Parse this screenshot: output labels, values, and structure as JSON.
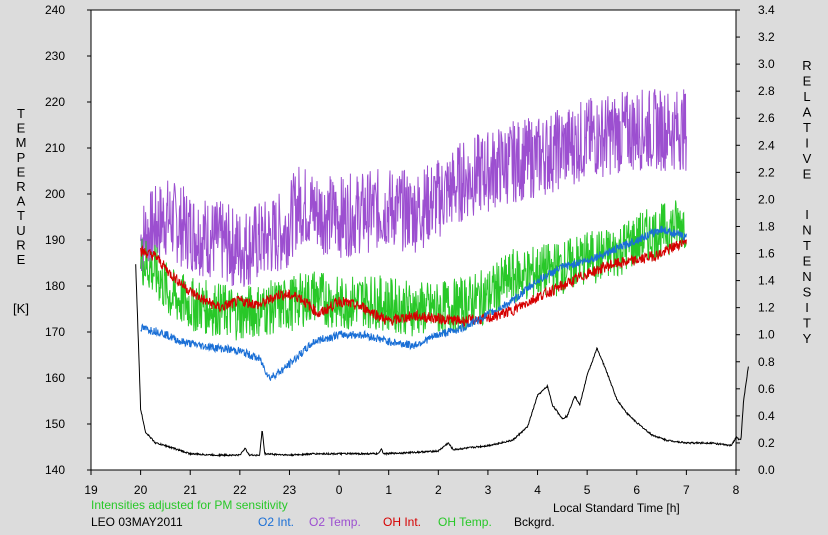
{
  "chart_data": {
    "type": "line",
    "left_axis": {
      "label_letters": [
        "T",
        "E",
        "M",
        "P",
        "E",
        "R",
        "A",
        "T",
        "U",
        "R",
        "E"
      ],
      "unit": "[K]",
      "range": [
        140,
        240
      ],
      "ticks": [
        "140",
        "150",
        "160",
        "170",
        "180",
        "190",
        "200",
        "210",
        "220",
        "230",
        "240"
      ]
    },
    "right_axis": {
      "label_letters_1": [
        "R",
        "E",
        "L",
        "A",
        "T",
        "I",
        "V",
        "E"
      ],
      "label_letters_2": [
        "I",
        "N",
        "T",
        "E",
        "N",
        "S",
        "I",
        "T",
        "Y"
      ],
      "range": [
        0.0,
        3.4
      ],
      "ticks": [
        "0.0",
        "0.2",
        "0.4",
        "0.6",
        "0.8",
        "1.0",
        "1.2",
        "1.4",
        "1.6",
        "1.8",
        "2.0",
        "2.2",
        "2.4",
        "2.6",
        "2.8",
        "3.0",
        "3.2",
        "3.4"
      ]
    },
    "x_axis": {
      "label": "Local Standard Time [h]",
      "range": [
        19,
        32
      ],
      "ticks": [
        "19",
        "20",
        "21",
        "22",
        "23",
        "0",
        "1",
        "2",
        "3",
        "4",
        "5",
        "6",
        "7",
        "8"
      ]
    },
    "note": "Intensities adjusted for PM sensitivity",
    "station": "LEO 03MAY2011",
    "legend": [
      {
        "label": "O2 Int.",
        "color": "#1a6fd6"
      },
      {
        "label": "O2 Temp.",
        "color": "#9c4fd0"
      },
      {
        "label": "OH Int.",
        "color": "#d60000"
      },
      {
        "label": "OH Temp.",
        "color": "#28c828"
      },
      {
        "label": "Bckgrd.",
        "color": "#000000"
      }
    ],
    "series": [
      {
        "key": "o2temp",
        "axis": "left",
        "color": "#9c4fd0",
        "noise": 9,
        "points": [
          [
            20.0,
            190
          ],
          [
            20.5,
            195
          ],
          [
            21.0,
            192
          ],
          [
            21.5,
            190
          ],
          [
            22.0,
            188
          ],
          [
            22.5,
            190
          ],
          [
            22.9,
            192
          ],
          [
            23.2,
            198
          ],
          [
            23.6,
            196
          ],
          [
            24.0,
            195
          ],
          [
            24.5,
            196
          ],
          [
            25.0,
            197
          ],
          [
            25.5,
            196
          ],
          [
            26.0,
            199
          ],
          [
            26.5,
            203
          ],
          [
            27.0,
            205
          ],
          [
            27.5,
            207
          ],
          [
            28.0,
            208
          ],
          [
            28.5,
            210
          ],
          [
            29.0,
            212
          ],
          [
            29.5,
            213
          ],
          [
            30.0,
            214
          ],
          [
            30.5,
            214
          ],
          [
            31.0,
            214
          ]
        ]
      },
      {
        "key": "ohtemp",
        "axis": "left",
        "color": "#28c828",
        "noise": 6,
        "points": [
          [
            20.0,
            186
          ],
          [
            20.3,
            183
          ],
          [
            20.6,
            178
          ],
          [
            21.0,
            176
          ],
          [
            21.5,
            175
          ],
          [
            22.0,
            174
          ],
          [
            22.5,
            175
          ],
          [
            23.0,
            176
          ],
          [
            23.5,
            178
          ],
          [
            24.0,
            176
          ],
          [
            24.5,
            177
          ],
          [
            25.0,
            176
          ],
          [
            25.5,
            175
          ],
          [
            26.0,
            175
          ],
          [
            26.5,
            176
          ],
          [
            27.0,
            178
          ],
          [
            27.5,
            182
          ],
          [
            28.0,
            183
          ],
          [
            28.5,
            184
          ],
          [
            29.0,
            186
          ],
          [
            29.5,
            187
          ],
          [
            30.0,
            190
          ],
          [
            30.5,
            192
          ],
          [
            31.0,
            194
          ]
        ]
      },
      {
        "key": "ohint",
        "axis": "right",
        "color": "#d60000",
        "noise": 0.04,
        "points": [
          [
            20.0,
            1.62
          ],
          [
            20.3,
            1.58
          ],
          [
            20.6,
            1.45
          ],
          [
            21.0,
            1.32
          ],
          [
            21.3,
            1.25
          ],
          [
            21.6,
            1.2
          ],
          [
            22.0,
            1.25
          ],
          [
            22.4,
            1.22
          ],
          [
            22.8,
            1.3
          ],
          [
            23.2,
            1.28
          ],
          [
            23.6,
            1.15
          ],
          [
            24.0,
            1.25
          ],
          [
            24.5,
            1.2
          ],
          [
            25.0,
            1.1
          ],
          [
            25.5,
            1.14
          ],
          [
            26.0,
            1.12
          ],
          [
            26.5,
            1.1
          ],
          [
            27.0,
            1.12
          ],
          [
            27.5,
            1.18
          ],
          [
            28.0,
            1.28
          ],
          [
            28.5,
            1.36
          ],
          [
            29.0,
            1.45
          ],
          [
            29.5,
            1.52
          ],
          [
            30.0,
            1.55
          ],
          [
            30.5,
            1.6
          ],
          [
            31.0,
            1.7
          ]
        ]
      },
      {
        "key": "o2int",
        "axis": "right",
        "color": "#1a6fd6",
        "noise": 0.03,
        "points": [
          [
            20.0,
            1.05
          ],
          [
            20.4,
            1.02
          ],
          [
            20.8,
            0.95
          ],
          [
            21.2,
            0.92
          ],
          [
            21.6,
            0.9
          ],
          [
            22.0,
            0.88
          ],
          [
            22.4,
            0.82
          ],
          [
            22.6,
            0.68
          ],
          [
            22.9,
            0.75
          ],
          [
            23.2,
            0.85
          ],
          [
            23.5,
            0.95
          ],
          [
            24.0,
            1.0
          ],
          [
            24.5,
            1.0
          ],
          [
            25.0,
            0.95
          ],
          [
            25.5,
            0.92
          ],
          [
            26.0,
            1.0
          ],
          [
            26.5,
            1.05
          ],
          [
            27.0,
            1.15
          ],
          [
            27.5,
            1.25
          ],
          [
            28.0,
            1.4
          ],
          [
            28.5,
            1.5
          ],
          [
            29.0,
            1.55
          ],
          [
            29.5,
            1.62
          ],
          [
            30.0,
            1.7
          ],
          [
            30.5,
            1.78
          ],
          [
            31.0,
            1.72
          ]
        ]
      },
      {
        "key": "bckgrd",
        "axis": "right",
        "color": "#000000",
        "noise": 0.006,
        "points": [
          [
            19.9,
            1.52
          ],
          [
            19.95,
            1.0
          ],
          [
            20.0,
            0.45
          ],
          [
            20.1,
            0.28
          ],
          [
            20.3,
            0.2
          ],
          [
            20.5,
            0.18
          ],
          [
            21.0,
            0.12
          ],
          [
            21.5,
            0.11
          ],
          [
            22.0,
            0.11
          ],
          [
            22.1,
            0.16
          ],
          [
            22.2,
            0.11
          ],
          [
            22.4,
            0.11
          ],
          [
            22.45,
            0.3
          ],
          [
            22.5,
            0.12
          ],
          [
            23.0,
            0.11
          ],
          [
            23.5,
            0.12
          ],
          [
            24.0,
            0.12
          ],
          [
            24.8,
            0.12
          ],
          [
            24.85,
            0.16
          ],
          [
            24.9,
            0.12
          ],
          [
            25.5,
            0.13
          ],
          [
            26.0,
            0.14
          ],
          [
            26.2,
            0.2
          ],
          [
            26.3,
            0.15
          ],
          [
            27.0,
            0.18
          ],
          [
            27.5,
            0.22
          ],
          [
            27.8,
            0.32
          ],
          [
            28.0,
            0.55
          ],
          [
            28.2,
            0.62
          ],
          [
            28.3,
            0.48
          ],
          [
            28.5,
            0.38
          ],
          [
            28.6,
            0.4
          ],
          [
            28.75,
            0.55
          ],
          [
            28.85,
            0.48
          ],
          [
            29.0,
            0.7
          ],
          [
            29.2,
            0.9
          ],
          [
            29.4,
            0.72
          ],
          [
            29.6,
            0.52
          ],
          [
            29.8,
            0.42
          ],
          [
            30.0,
            0.35
          ],
          [
            30.3,
            0.26
          ],
          [
            30.6,
            0.22
          ],
          [
            31.0,
            0.2
          ],
          [
            31.5,
            0.2
          ],
          [
            31.9,
            0.18
          ],
          [
            32.0,
            0.24
          ],
          [
            32.1,
            0.22
          ],
          [
            32.15,
            0.5
          ],
          [
            32.25,
            0.77
          ]
        ]
      }
    ]
  }
}
